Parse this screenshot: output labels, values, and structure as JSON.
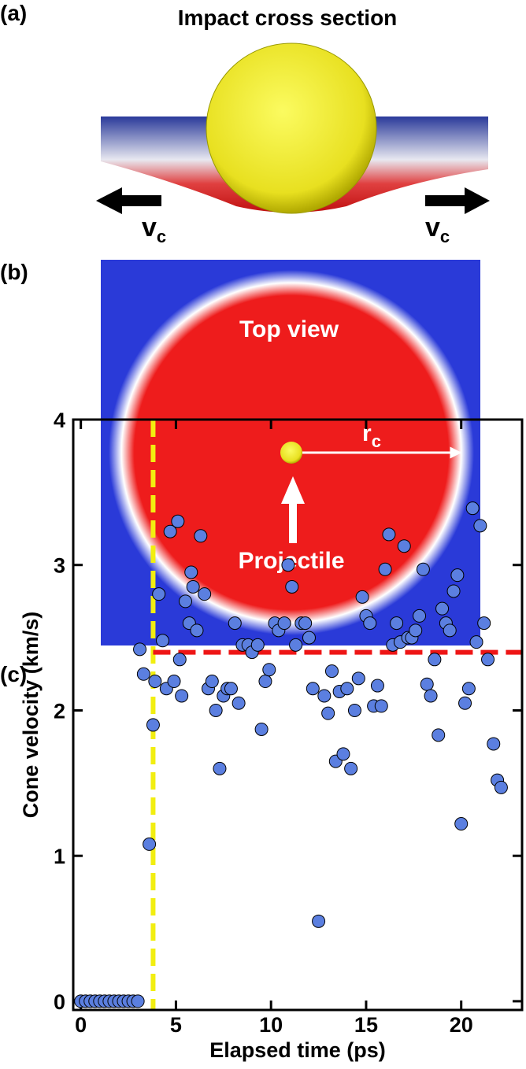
{
  "panel_a": {
    "label": "(a)",
    "title": "Impact cross section",
    "velocity_label": {
      "symbol": "v",
      "subscript": "c"
    }
  },
  "panel_b": {
    "label": "(b)",
    "title": "Top view",
    "radius_label": {
      "symbol": "r",
      "subscript": "c"
    },
    "projectile_label": "Projectile"
  },
  "panel_c": {
    "label": "(c)"
  },
  "chart_data": {
    "type": "scatter",
    "xlabel": "Elapsed time (ps)",
    "ylabel": "Cone velocity (km/s)",
    "color": "#5b7fe0",
    "x": [
      0,
      0.25,
      0.5,
      0.75,
      1,
      1.25,
      1.5,
      1.75,
      2,
      2.25,
      2.5,
      2.75,
      3,
      3.1,
      3.3,
      3.6,
      3.8,
      3.9,
      4.1,
      4.3,
      4.5,
      4.7,
      4.9,
      5.1,
      5.2,
      5.3,
      5.5,
      5.7,
      5.8,
      5.9,
      6.1,
      6.3,
      6.5,
      6.7,
      6.9,
      7.1,
      7.3,
      7.5,
      7.7,
      7.9,
      8.1,
      8.3,
      8.5,
      8.8,
      9.0,
      9.3,
      9.5,
      9.7,
      9.9,
      10.2,
      10.4,
      10.7,
      10.9,
      11.1,
      11.3,
      11.6,
      11.8,
      12.0,
      12.2,
      12.5,
      12.8,
      13.0,
      13.2,
      13.4,
      13.6,
      13.8,
      14.0,
      14.2,
      14.4,
      14.6,
      14.8,
      15.0,
      15.2,
      15.4,
      15.6,
      15.8,
      16.0,
      16.2,
      16.4,
      16.6,
      16.8,
      17.0,
      17.2,
      17.4,
      17.6,
      17.8,
      18.0,
      18.2,
      18.4,
      18.6,
      18.8,
      19.0,
      19.2,
      19.4,
      19.6,
      19.8,
      20.0,
      20.2,
      20.4,
      20.6,
      20.8,
      21.0,
      21.2,
      21.4,
      21.7,
      21.9,
      22.1
    ],
    "values": [
      0,
      0,
      0,
      0,
      0,
      0,
      0,
      0,
      0,
      0,
      0,
      0,
      0,
      2.42,
      2.25,
      1.08,
      1.9,
      2.2,
      2.8,
      2.48,
      2.15,
      3.23,
      2.2,
      3.3,
      2.35,
      2.1,
      2.75,
      2.6,
      2.95,
      2.85,
      2.55,
      3.2,
      2.8,
      2.15,
      2.2,
      2.0,
      1.6,
      2.1,
      2.15,
      2.15,
      2.6,
      2.05,
      2.45,
      2.45,
      2.4,
      2.45,
      1.87,
      2.2,
      2.28,
      2.6,
      2.55,
      2.6,
      3.0,
      2.85,
      2.45,
      2.6,
      2.6,
      2.5,
      2.15,
      0.55,
      2.1,
      1.98,
      2.27,
      1.65,
      2.13,
      1.7,
      2.15,
      1.6,
      2.0,
      2.22,
      2.78,
      2.65,
      2.6,
      2.03,
      2.17,
      2.03,
      2.97,
      3.21,
      2.45,
      2.6,
      2.47,
      3.13,
      2.5,
      2.5,
      2.55,
      2.65,
      2.97,
      2.18,
      2.1,
      2.35,
      1.83,
      2.7,
      2.6,
      2.55,
      2.82,
      2.93,
      1.22,
      2.05,
      2.15,
      3.39,
      2.47,
      3.27,
      2.6,
      2.35,
      1.77,
      1.52,
      1.47
    ],
    "xlim": [
      -0.4,
      23.2
    ],
    "ylim": [
      -0.06,
      4.0
    ],
    "xticks": [
      0,
      5,
      10,
      15,
      20
    ],
    "yticks": [
      0,
      1,
      2,
      3,
      4
    ],
    "vline_x": 3.8,
    "vline_color": "#f2ee10",
    "hline_y": 2.4,
    "hline_color": "#ee1515"
  }
}
